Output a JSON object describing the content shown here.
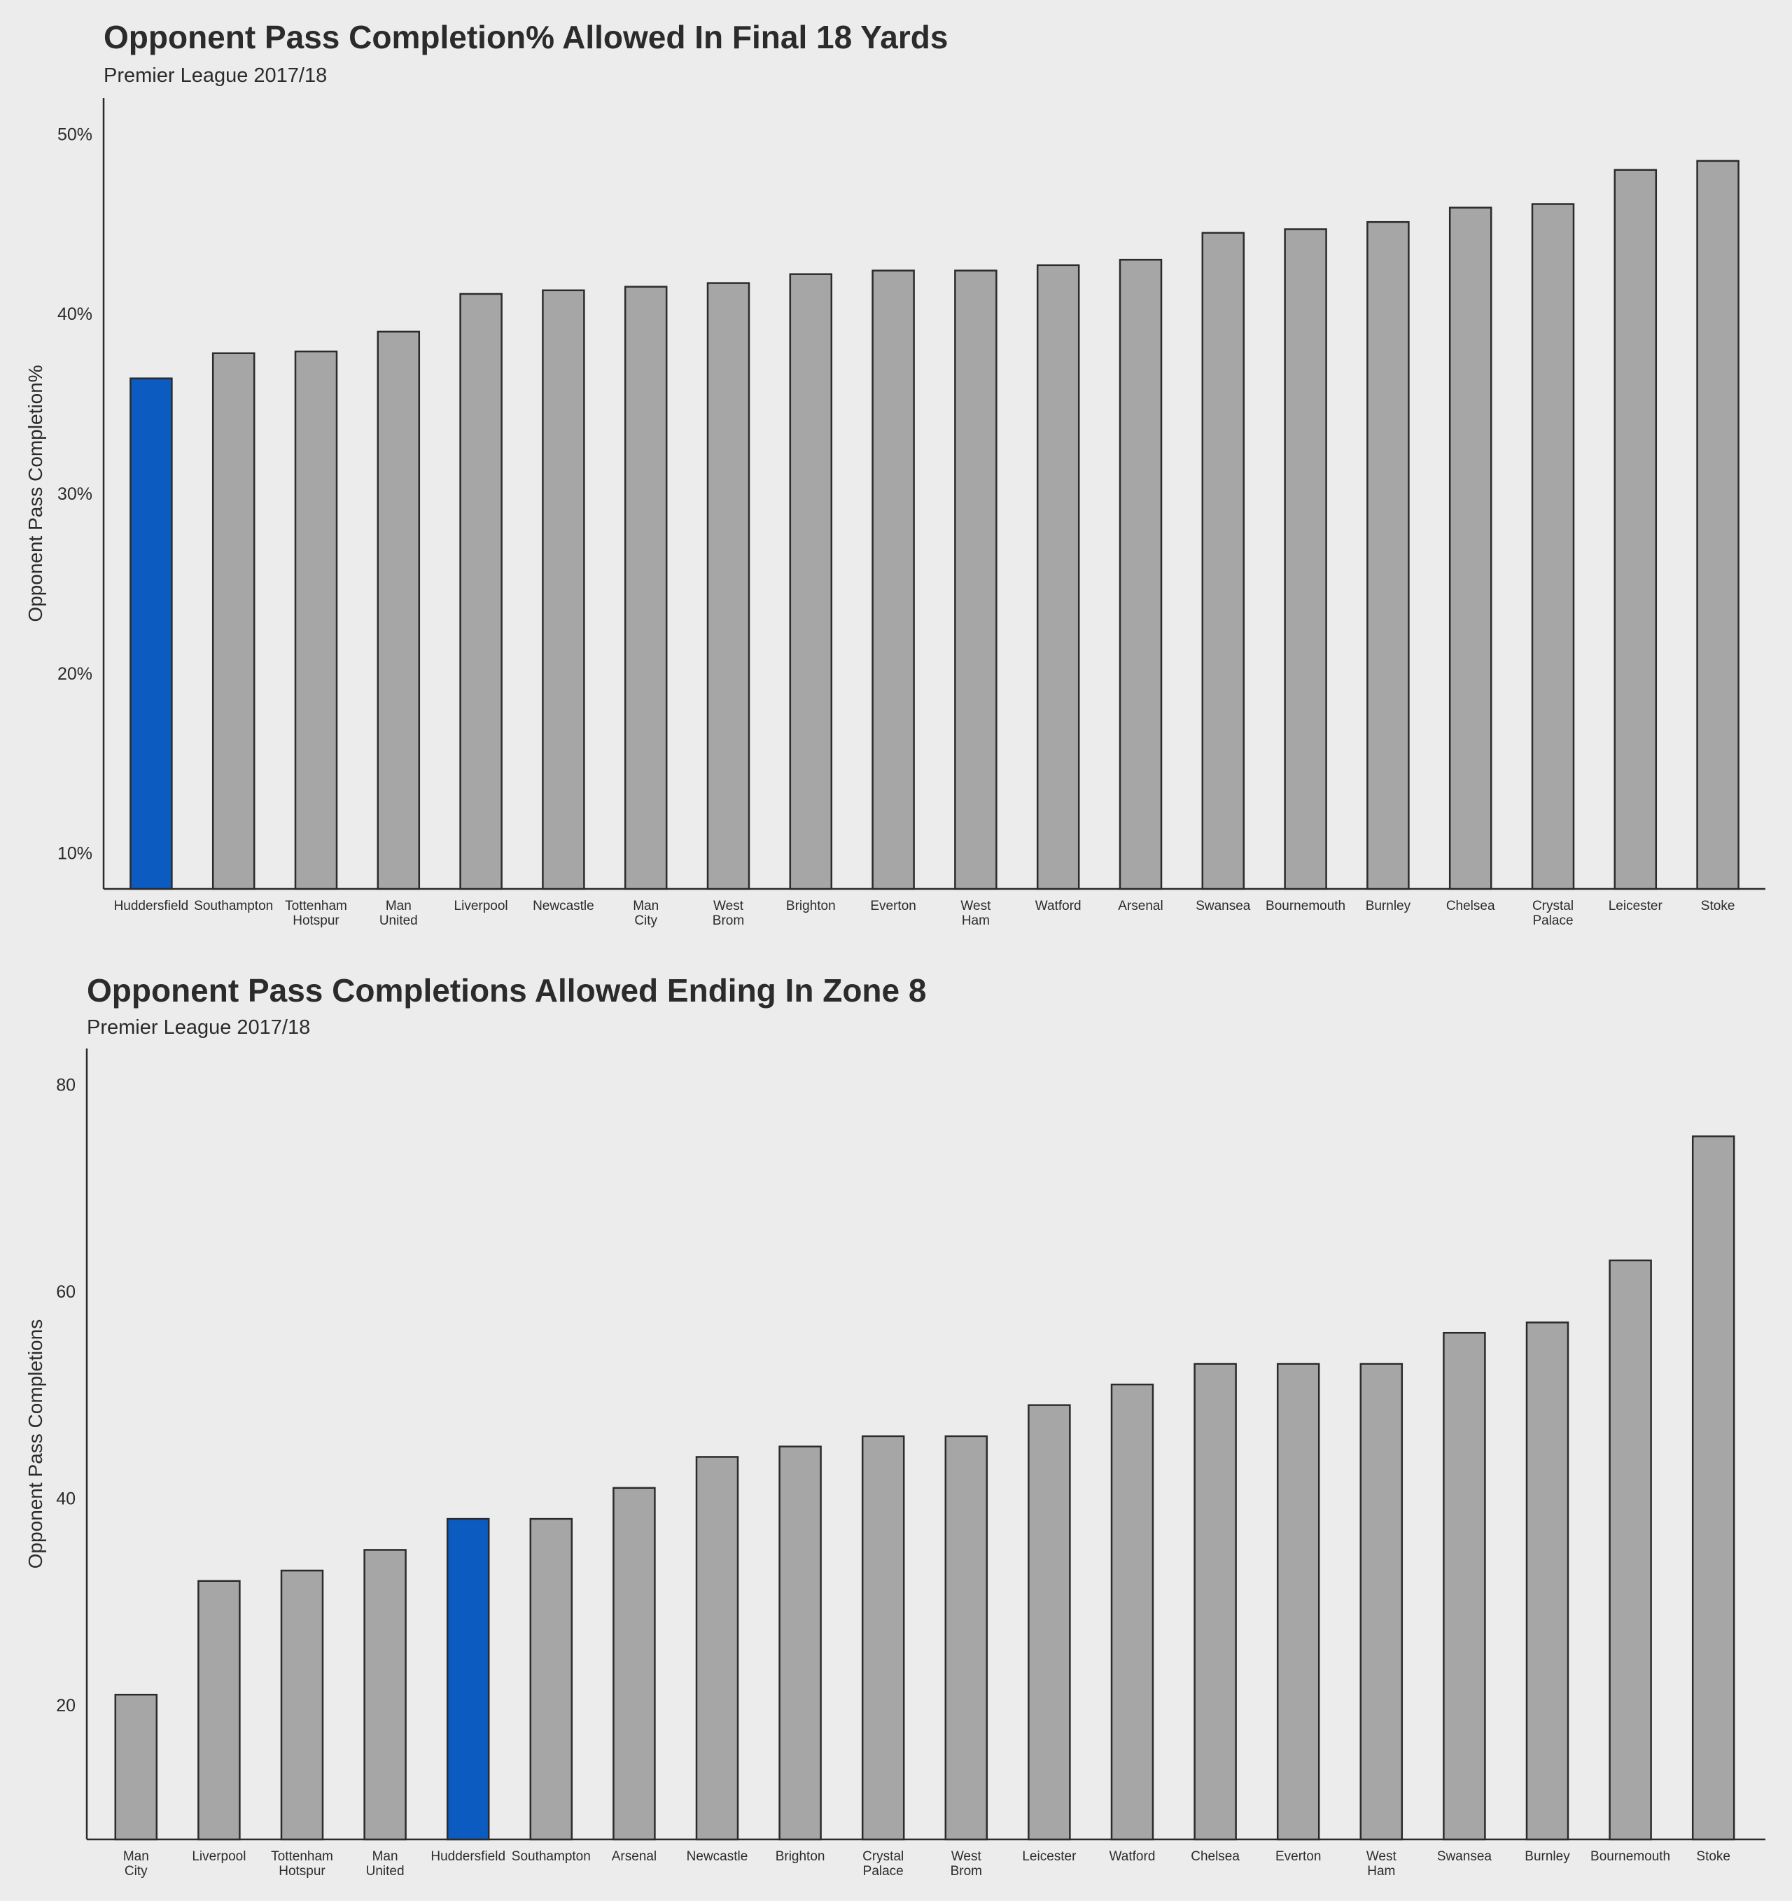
{
  "colors": {
    "background": "#ececec",
    "bar_default": "#a6a6a6",
    "bar_highlight": "#0b5bc1",
    "bar_stroke": "#2b2b2b",
    "text": "#2b2b2b"
  },
  "chart_data": [
    {
      "type": "bar",
      "title": "Opponent Pass Completion% Allowed In Final 18 Yards",
      "subtitle": "Premier League 2017/18",
      "xlabel": "",
      "ylabel": "Opponent Pass Completion%",
      "categories": [
        "Huddersfield",
        "Southampton",
        "Tottenham\nHotspur",
        "Man\nUnited",
        "Liverpool",
        "Newcastle",
        "Man\nCity",
        "West\nBrom",
        "Brighton",
        "Everton",
        "West\nHam",
        "Watford",
        "Arsenal",
        "Swansea",
        "Bournemouth",
        "Burnley",
        "Chelsea",
        "Crystal\nPalace",
        "Leicester",
        "Stoke"
      ],
      "values": [
        36.4,
        37.8,
        37.9,
        39.0,
        41.1,
        41.3,
        41.5,
        41.7,
        42.2,
        42.4,
        42.4,
        42.7,
        43.0,
        44.5,
        44.7,
        45.1,
        45.9,
        46.1,
        48.0,
        48.5
      ],
      "highlight": "Huddersfield",
      "ylim": [
        8,
        52
      ],
      "yticks": [
        10,
        20,
        30,
        40,
        50
      ],
      "ytick_labels": [
        "10%",
        "20%",
        "30%",
        "40%",
        "50%"
      ],
      "grid": false,
      "legend": "none"
    },
    {
      "type": "bar",
      "title": "Opponent Pass Completions Allowed Ending In Zone 8",
      "subtitle": "Premier League 2017/18",
      "xlabel": "",
      "ylabel": "Opponent Pass Completions",
      "categories": [
        "Man\nCity",
        "Liverpool",
        "Tottenham\nHotspur",
        "Man\nUnited",
        "Huddersfield",
        "Southampton",
        "Arsenal",
        "Newcastle",
        "Brighton",
        "Crystal\nPalace",
        "West\nBrom",
        "Leicester",
        "Watford",
        "Chelsea",
        "Everton",
        "West\nHam",
        "Swansea",
        "Burnley",
        "Bournemouth",
        "Stoke"
      ],
      "values": [
        21,
        32,
        33,
        35,
        38,
        38,
        41,
        44,
        45,
        46,
        46,
        49,
        51,
        53,
        53,
        53,
        56,
        57,
        63,
        75
      ],
      "highlight": "Huddersfield",
      "ylim": [
        7,
        83.5
      ],
      "yticks": [
        20,
        40,
        60,
        80
      ],
      "ytick_labels": [
        "20",
        "40",
        "60",
        "80"
      ],
      "grid": false,
      "legend": "none"
    }
  ]
}
